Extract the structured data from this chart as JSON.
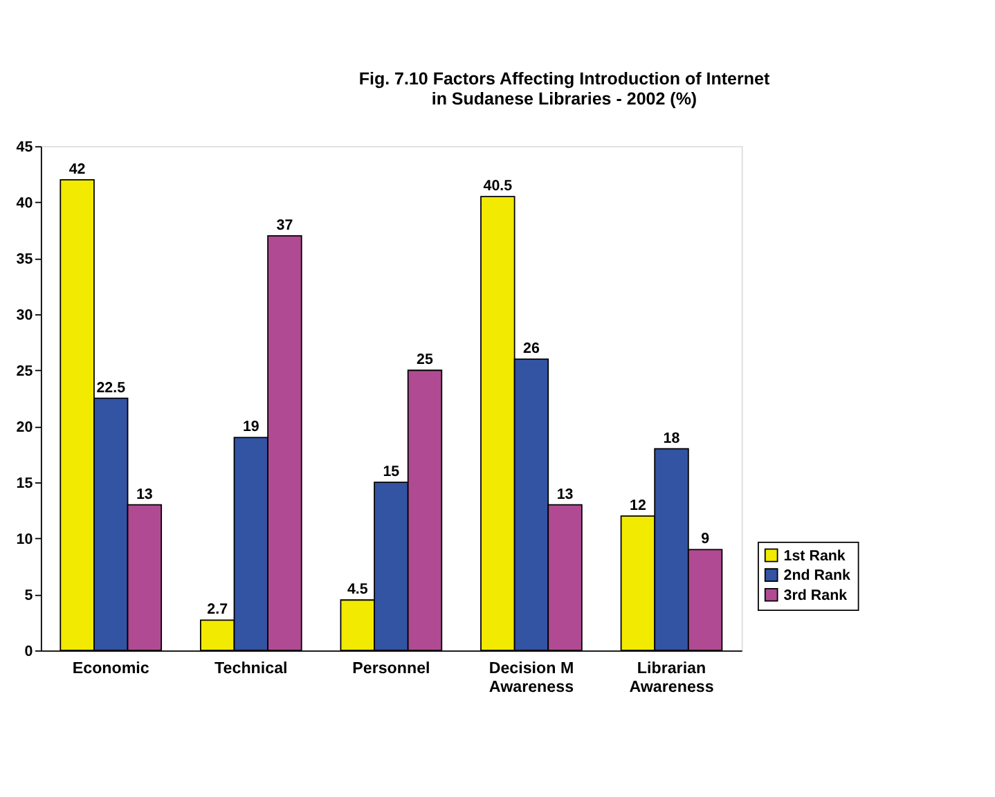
{
  "chart_data": {
    "type": "bar",
    "title": "Fig. 7.10   Factors Affecting Introduction of Internet\nin Sudanese Libraries - 2002 (%)",
    "categories": [
      "Economic",
      "Technical",
      "Personnel",
      "Decision M\nAwareness",
      "Librarian\nAwareness"
    ],
    "series": [
      {
        "name": "1st Rank",
        "color": "#f2ea00",
        "values": [
          42,
          2.7,
          4.5,
          40.5,
          12
        ]
      },
      {
        "name": "2nd Rank",
        "color": "#3353a3",
        "values": [
          22.5,
          19,
          15,
          26,
          18
        ]
      },
      {
        "name": "3rd Rank",
        "color": "#b04b93",
        "values": [
          13,
          37,
          25,
          13,
          9
        ]
      }
    ],
    "ylim": [
      0,
      45
    ],
    "yticks": [
      0,
      5,
      10,
      15,
      20,
      25,
      30,
      35,
      40,
      45
    ],
    "grid": false,
    "legend": "right",
    "data_labels": true
  }
}
